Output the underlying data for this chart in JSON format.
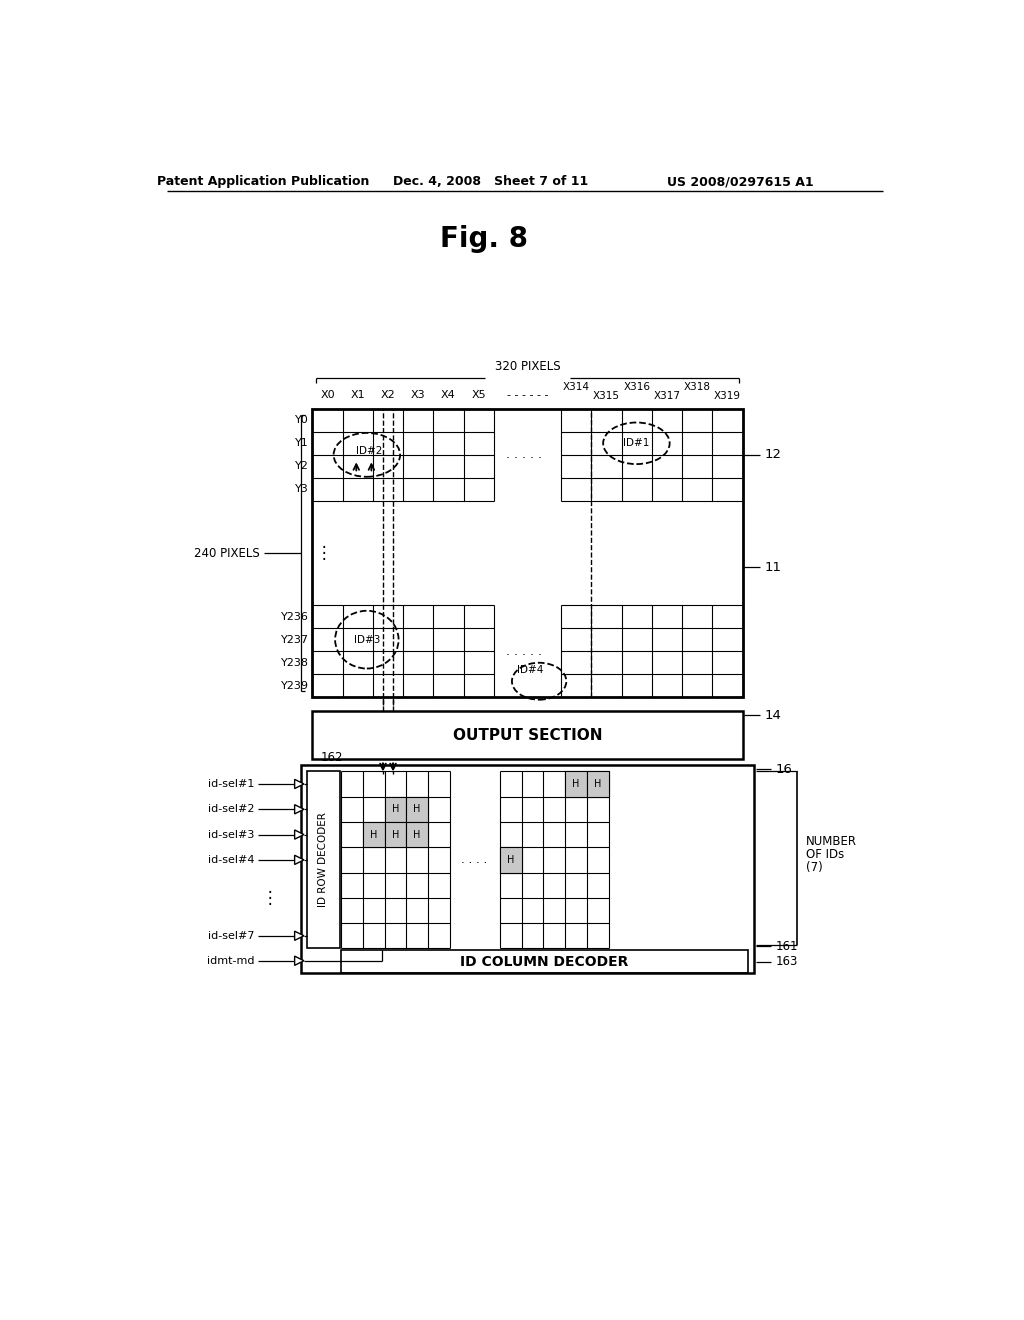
{
  "header_left": "Patent Application Publication",
  "header_mid": "Dec. 4, 2008   Sheet 7 of 11",
  "header_right": "US 2008/0297615 A1",
  "fig_label": "Fig. 8",
  "bg_color": "#ffffff"
}
